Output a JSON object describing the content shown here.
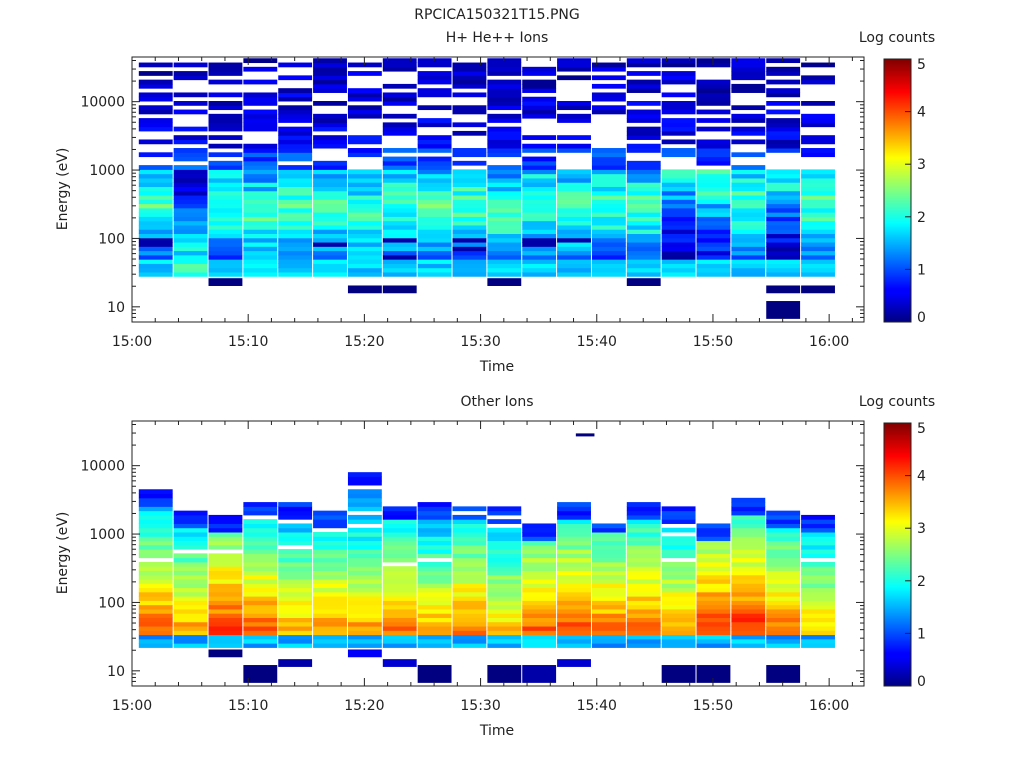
{
  "figure": {
    "title": "RPCICA150321T15.PNG"
  },
  "chart_data": [
    {
      "type": "heatmap",
      "title": "H+ He++ Ions",
      "xlabel": "Time",
      "ylabel": "Energy (eV)",
      "x_ticks": [
        "15:00",
        "15:10",
        "15:20",
        "15:30",
        "15:40",
        "15:50",
        "16:00"
      ],
      "xlim": [
        "15:00",
        "16:03"
      ],
      "y_ticks": [
        "10",
        "100",
        "1000",
        "10000"
      ],
      "ylim": [
        6,
        45000
      ],
      "y_scale": "log",
      "colorbar": {
        "label": "Log counts",
        "ticks": [
          "0",
          "1",
          "2",
          "3",
          "4",
          "5"
        ],
        "range": [
          0,
          5
        ],
        "colormap": "jet"
      },
      "time_bins": [
        "15:02",
        "15:05",
        "15:08",
        "15:11",
        "15:14",
        "15:17",
        "15:20",
        "15:23",
        "15:26",
        "15:29",
        "15:32",
        "15:35",
        "15:38",
        "15:41",
        "15:44",
        "15:47",
        "15:50",
        "15:53",
        "15:56",
        "15:59"
      ],
      "band_profile": {
        "low_cut_eV": 28,
        "bright_range_eV": [
          30,
          1000
        ],
        "peak_log_counts": 2.3,
        "peak_energy_eV": [
          300,
          30,
          300,
          200,
          300,
          300,
          200,
          300,
          300,
          300,
          200,
          300,
          250,
          300,
          250,
          1500,
          800,
          300,
          1200,
          300
        ],
        "high_energy_sparse_max_log_counts": 0.5,
        "outliers": [
          {
            "time": "15:08",
            "energy_eV": 23,
            "log_counts": 0
          },
          {
            "time": "15:20",
            "energy_eV": 18,
            "log_counts": 0
          },
          {
            "time": "15:23",
            "energy_eV": 18,
            "log_counts": 0
          },
          {
            "time": "15:32",
            "energy_eV": 23,
            "log_counts": 0
          },
          {
            "time": "15:44",
            "energy_eV": 23,
            "log_counts": 0
          },
          {
            "time": "15:56",
            "energy_eV": 9,
            "log_counts": 0
          },
          {
            "time": "15:56",
            "energy_eV": 18,
            "log_counts": 0
          },
          {
            "time": "15:59",
            "energy_eV": 18,
            "log_counts": 0
          }
        ]
      }
    },
    {
      "type": "heatmap",
      "title": "Other Ions",
      "xlabel": "Time",
      "ylabel": "Energy (eV)",
      "x_ticks": [
        "15:00",
        "15:10",
        "15:20",
        "15:30",
        "15:40",
        "15:50",
        "16:00"
      ],
      "xlim": [
        "15:00",
        "16:03"
      ],
      "y_ticks": [
        "10",
        "100",
        "1000",
        "10000"
      ],
      "ylim": [
        6,
        45000
      ],
      "y_scale": "log",
      "colorbar": {
        "label": "Log counts",
        "ticks": [
          "0",
          "1",
          "2",
          "3",
          "4",
          "5"
        ],
        "range": [
          0,
          5
        ],
        "colormap": "jet"
      },
      "time_bins": [
        "15:02",
        "15:05",
        "15:08",
        "15:11",
        "15:14",
        "15:17",
        "15:20",
        "15:23",
        "15:26",
        "15:29",
        "15:32",
        "15:35",
        "15:38",
        "15:41",
        "15:44",
        "15:47",
        "15:50",
        "15:53",
        "15:56",
        "15:59"
      ],
      "band_profile": {
        "low_cut_eV": 22,
        "upper_extent_eV": [
          4400,
          2000,
          1800,
          2600,
          2900,
          2200,
          7500,
          2900,
          2600,
          2700,
          2300,
          1400,
          2900,
          1700,
          2700,
          2300,
          1400,
          3200,
          2200,
          1700
        ],
        "peak_energy_eV": 38,
        "peak_log_counts": [
          3.9,
          3.6,
          4.1,
          3.9,
          3.5,
          3.7,
          3.6,
          3.8,
          3.5,
          3.8,
          3.4,
          3.9,
          4.0,
          3.8,
          3.9,
          3.6,
          4.1,
          4.2,
          3.8,
          3.4
        ],
        "outliers": [
          {
            "time": "15:08",
            "energy_eV": 18,
            "log_counts": 0
          },
          {
            "time": "15:11",
            "energy_eV": 9,
            "log_counts": 0
          },
          {
            "time": "15:14",
            "energy_eV": 13,
            "log_counts": 0.2
          },
          {
            "time": "15:20",
            "energy_eV": 18,
            "log_counts": 0.6
          },
          {
            "time": "15:23",
            "energy_eV": 13,
            "log_counts": 0.4
          },
          {
            "time": "15:26",
            "energy_eV": 9,
            "log_counts": 0
          },
          {
            "time": "15:32",
            "energy_eV": 9,
            "log_counts": 0
          },
          {
            "time": "15:35",
            "energy_eV": 9,
            "log_counts": 0.2
          },
          {
            "time": "15:38",
            "energy_eV": 13,
            "log_counts": 0.4
          },
          {
            "time": "15:39",
            "energy_eV": 26000,
            "log_counts": 0
          },
          {
            "time": "15:47",
            "energy_eV": 9,
            "log_counts": 0
          },
          {
            "time": "15:50",
            "energy_eV": 9,
            "log_counts": 0
          },
          {
            "time": "15:56",
            "energy_eV": 9,
            "log_counts": 0
          }
        ]
      }
    }
  ]
}
